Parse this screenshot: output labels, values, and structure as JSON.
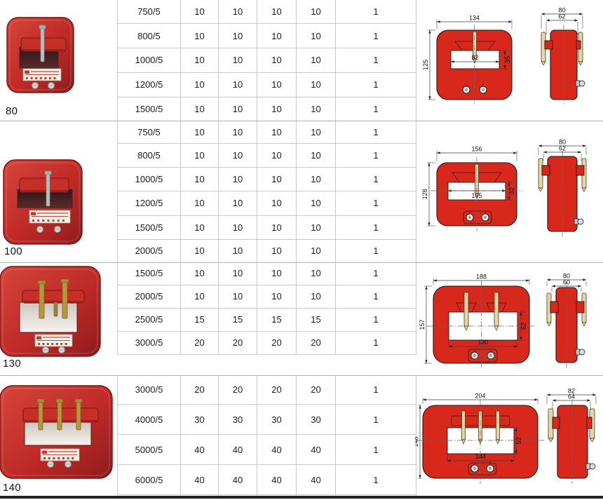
{
  "colors": {
    "photo_red": "#bf2a26",
    "photo_red_dark": "#8f1b1e",
    "photo_border": "#7a1215",
    "drawing_red": "#d8281b",
    "drawing_outline": "#1a1a1a",
    "brass": "#c9ab52",
    "brass_dark": "#7a6420",
    "metal": "#c4c4c4",
    "grid_line": "#c9c9c9",
    "divider": "#b0b0b0",
    "bottom_bar": "#232323",
    "dim_line": "#3a3a3a",
    "dim_text": "#111111"
  },
  "sections": [
    {
      "size_label": "80",
      "prong_count": 1,
      "table_rows": [
        [
          "750/5",
          "10",
          "10",
          "10",
          "10",
          "1"
        ],
        [
          "800/5",
          "10",
          "10",
          "10",
          "10",
          "1"
        ],
        [
          "1000/5",
          "10",
          "10",
          "10",
          "10",
          "1"
        ],
        [
          "1200/5",
          "10",
          "10",
          "10",
          "10",
          "1"
        ],
        [
          "1500/5",
          "10",
          "10",
          "10",
          "10",
          "1"
        ]
      ],
      "drawing": {
        "front_width": "134",
        "front_height": "125",
        "window_width": "82",
        "window_height": "35",
        "side_width": "80",
        "side_inner_width": "62"
      }
    },
    {
      "size_label": "100",
      "prong_count": 1,
      "table_rows": [
        [
          "750/5",
          "10",
          "10",
          "10",
          "10",
          "1"
        ],
        [
          "800/5",
          "10",
          "10",
          "10",
          "10",
          "1"
        ],
        [
          "1000/5",
          "10",
          "10",
          "10",
          "10",
          "1"
        ],
        [
          "1200/5",
          "10",
          "10",
          "10",
          "10",
          "1"
        ],
        [
          "1500/5",
          "10",
          "10",
          "10",
          "10",
          "1"
        ],
        [
          "2000/5",
          "10",
          "10",
          "10",
          "10",
          "1"
        ]
      ],
      "drawing": {
        "front_width": "156",
        "front_height": "128",
        "window_width": "105",
        "window_height": "32",
        "side_width": "80",
        "side_inner_width": "62"
      }
    },
    {
      "size_label": "130",
      "prong_count": 2,
      "table_rows": [
        [
          "1500/5",
          "10",
          "10",
          "10",
          "10",
          "1"
        ],
        [
          "2000/5",
          "10",
          "10",
          "10",
          "10",
          "1"
        ],
        [
          "2500/5",
          "15",
          "15",
          "15",
          "15",
          "1"
        ],
        [
          "3000/5",
          "20",
          "20",
          "20",
          "20",
          "1"
        ]
      ],
      "drawing": {
        "front_width": "188",
        "front_height": "157",
        "window_width": "130",
        "window_height": "62",
        "side_width": "80",
        "side_inner_width": "60"
      }
    },
    {
      "size_label": "140",
      "prong_count": 3,
      "table_rows": [
        [
          "3000/5",
          "20",
          "20",
          "20",
          "20",
          "1"
        ],
        [
          "4000/5",
          "30",
          "30",
          "30",
          "30",
          "1"
        ],
        [
          "5000/5",
          "40",
          "40",
          "40",
          "40",
          "1"
        ],
        [
          "6000/5",
          "40",
          "40",
          "40",
          "40",
          "1"
        ],
        [
          "",
          "",
          "",
          "",
          "",
          ""
        ]
      ],
      "drawing": {
        "front_width": "204",
        "front_height": "148",
        "window_width": "144",
        "window_height": "52",
        "side_width": "82",
        "side_inner_width": "64"
      }
    }
  ]
}
